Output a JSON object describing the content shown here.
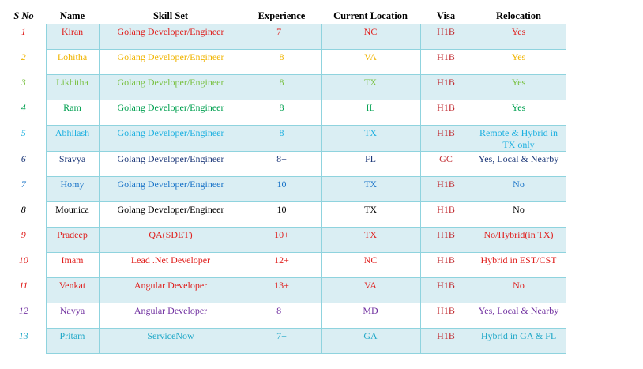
{
  "columns": [
    "S No",
    "Name",
    "Skill Set",
    "Experience",
    "Current Location",
    "Visa",
    "Relocation"
  ],
  "colors": {
    "red": "#e0201e",
    "orange": "#f0b400",
    "green": "#7ac143",
    "darkgreen": "#00a050",
    "lightblue": "#1cb0e0",
    "navy": "#1f3a7a",
    "blue": "#1a74c8",
    "black": "#000000",
    "purple": "#7030a0",
    "teal": "#20a8c8"
  },
  "rows": [
    {
      "sno": "1",
      "name": "Kiran",
      "skill": "Golang Developer/Engineer",
      "exp": "7+",
      "loc": "NC",
      "visa": "H1B",
      "reloc": "Yes",
      "color": "#e0201e",
      "shade": true
    },
    {
      "sno": "2",
      "name": "Lohitha",
      "skill": "Golang Developer/Engineer",
      "exp": "8",
      "loc": "VA",
      "visa": "H1B",
      "reloc": "Yes",
      "color": "#f0b400",
      "shade": false
    },
    {
      "sno": "3",
      "name": "Likhitha",
      "skill": "Golang Developer/Engineer",
      "exp": "8",
      "loc": "TX",
      "visa": "H1B",
      "reloc": "Yes",
      "color": "#7ac143",
      "shade": true
    },
    {
      "sno": "4",
      "name": "Ram",
      "skill": "Golang Developer/Engineer",
      "exp": "8",
      "loc": "IL",
      "visa": "H1B",
      "reloc": "Yes",
      "color": "#00a050",
      "shade": false
    },
    {
      "sno": "5",
      "name": "Abhilash",
      "skill": "Golang Developer/Engineer",
      "exp": "8",
      "loc": "TX",
      "visa": "H1B",
      "reloc": "Remote & Hybrid in TX only",
      "color": "#1cb0e0",
      "shade": true
    },
    {
      "sno": "6",
      "name": "Sravya",
      "skill": "Golang Developer/Engineer",
      "exp": "8+",
      "loc": "FL",
      "visa": "GC",
      "reloc": "Yes, Local & Nearby",
      "color": "#1f3a7a",
      "shade": false
    },
    {
      "sno": "7",
      "name": "Homy",
      "skill": "Golang Developer/Engineer",
      "exp": "10",
      "loc": "TX",
      "visa": "H1B",
      "reloc": "No",
      "color": "#1a74c8",
      "shade": true
    },
    {
      "sno": "8",
      "name": "Mounica",
      "skill": "Golang Developer/Engineer",
      "exp": "10",
      "loc": "TX",
      "visa": "H1B",
      "reloc": "No",
      "color": "#000000",
      "shade": false
    },
    {
      "sno": "9",
      "name": "Pradeep",
      "skill": "QA(SDET)",
      "exp": "10+",
      "loc": "TX",
      "visa": "H1B",
      "reloc": "No/Hybrid(in TX)",
      "color": "#e0201e",
      "shade": true
    },
    {
      "sno": "10",
      "name": "Imam",
      "skill": "Lead .Net Developer",
      "exp": "12+",
      "loc": "NC",
      "visa": "H1B",
      "reloc": "Hybrid in EST/CST",
      "color": "#e0201e",
      "shade": false
    },
    {
      "sno": "11",
      "name": "Venkat",
      "skill": "Angular Developer",
      "exp": "13+",
      "loc": "VA",
      "visa": "H1B",
      "reloc": "No",
      "color": "#e0201e",
      "shade": true
    },
    {
      "sno": "12",
      "name": "Navya",
      "skill": "Angular Developer",
      "exp": "8+",
      "loc": "MD",
      "visa": "H1B",
      "reloc": "Yes, Local & Nearby",
      "color": "#7030a0",
      "shade": false
    },
    {
      "sno": "13",
      "name": "Pritam",
      "skill": "ServiceNow",
      "exp": "7+",
      "loc": "GA",
      "visa": "H1B",
      "reloc": "Hybrid in GA & FL",
      "color": "#20a8c8",
      "shade": true
    }
  ]
}
